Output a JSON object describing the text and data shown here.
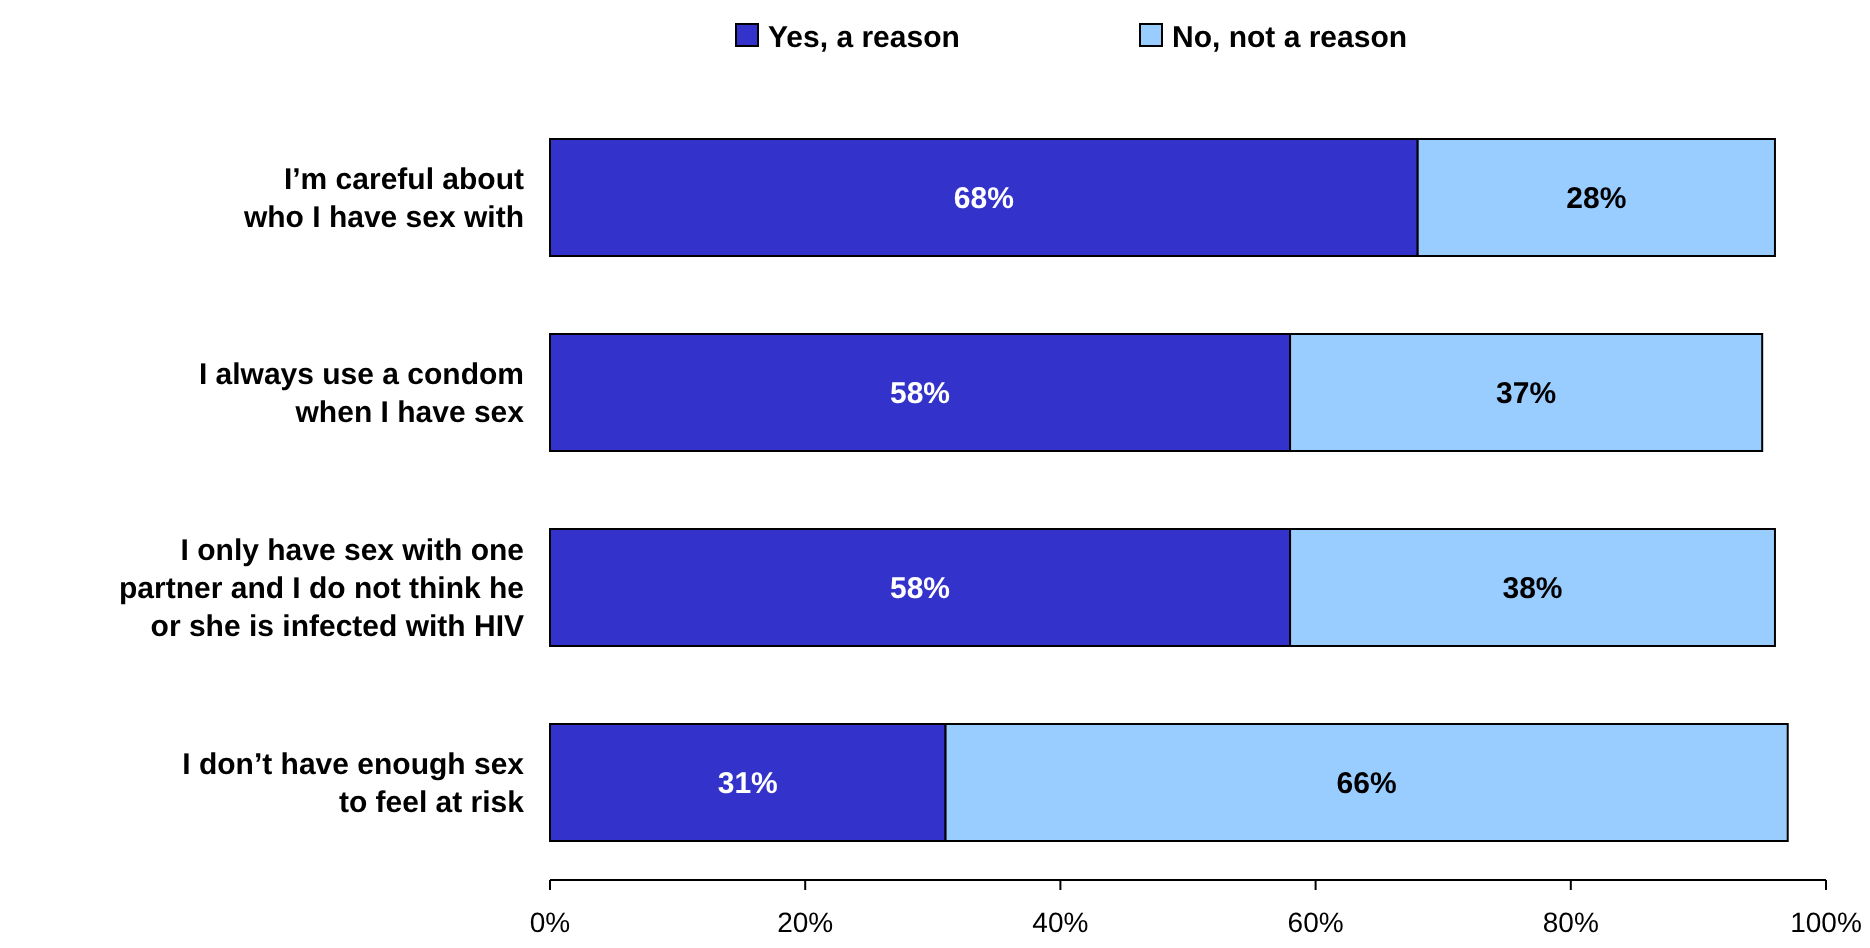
{
  "chart_data": {
    "type": "bar",
    "orientation": "horizontal",
    "stacked": true,
    "categories": [
      "I’m careful about\nwho I have sex with",
      "I always use a condom\nwhen I have sex",
      "I only have sex with one\npartner and I do not think he\nor she is infected with HIV",
      "I don’t have enough sex\nto feel at risk"
    ],
    "series": [
      {
        "name": "Yes, a reason",
        "color": "#3333cc",
        "values": [
          68,
          58,
          58,
          31
        ],
        "value_labels": [
          "68%",
          "58%",
          "58%",
          "31%"
        ]
      },
      {
        "name": "No, not a reason",
        "color": "#99ccff",
        "values": [
          28,
          37,
          38,
          66
        ],
        "value_labels": [
          "28%",
          "37%",
          "38%",
          "66%"
        ]
      }
    ],
    "xlim": [
      0,
      100
    ],
    "xticks": [
      {
        "value": 0,
        "label": "0%"
      },
      {
        "value": 20,
        "label": "20%"
      },
      {
        "value": 40,
        "label": "40%"
      },
      {
        "value": 60,
        "label": "60%"
      },
      {
        "value": 80,
        "label": "80%"
      },
      {
        "value": 100,
        "label": "100%"
      }
    ],
    "legend": "top",
    "grid": false
  }
}
